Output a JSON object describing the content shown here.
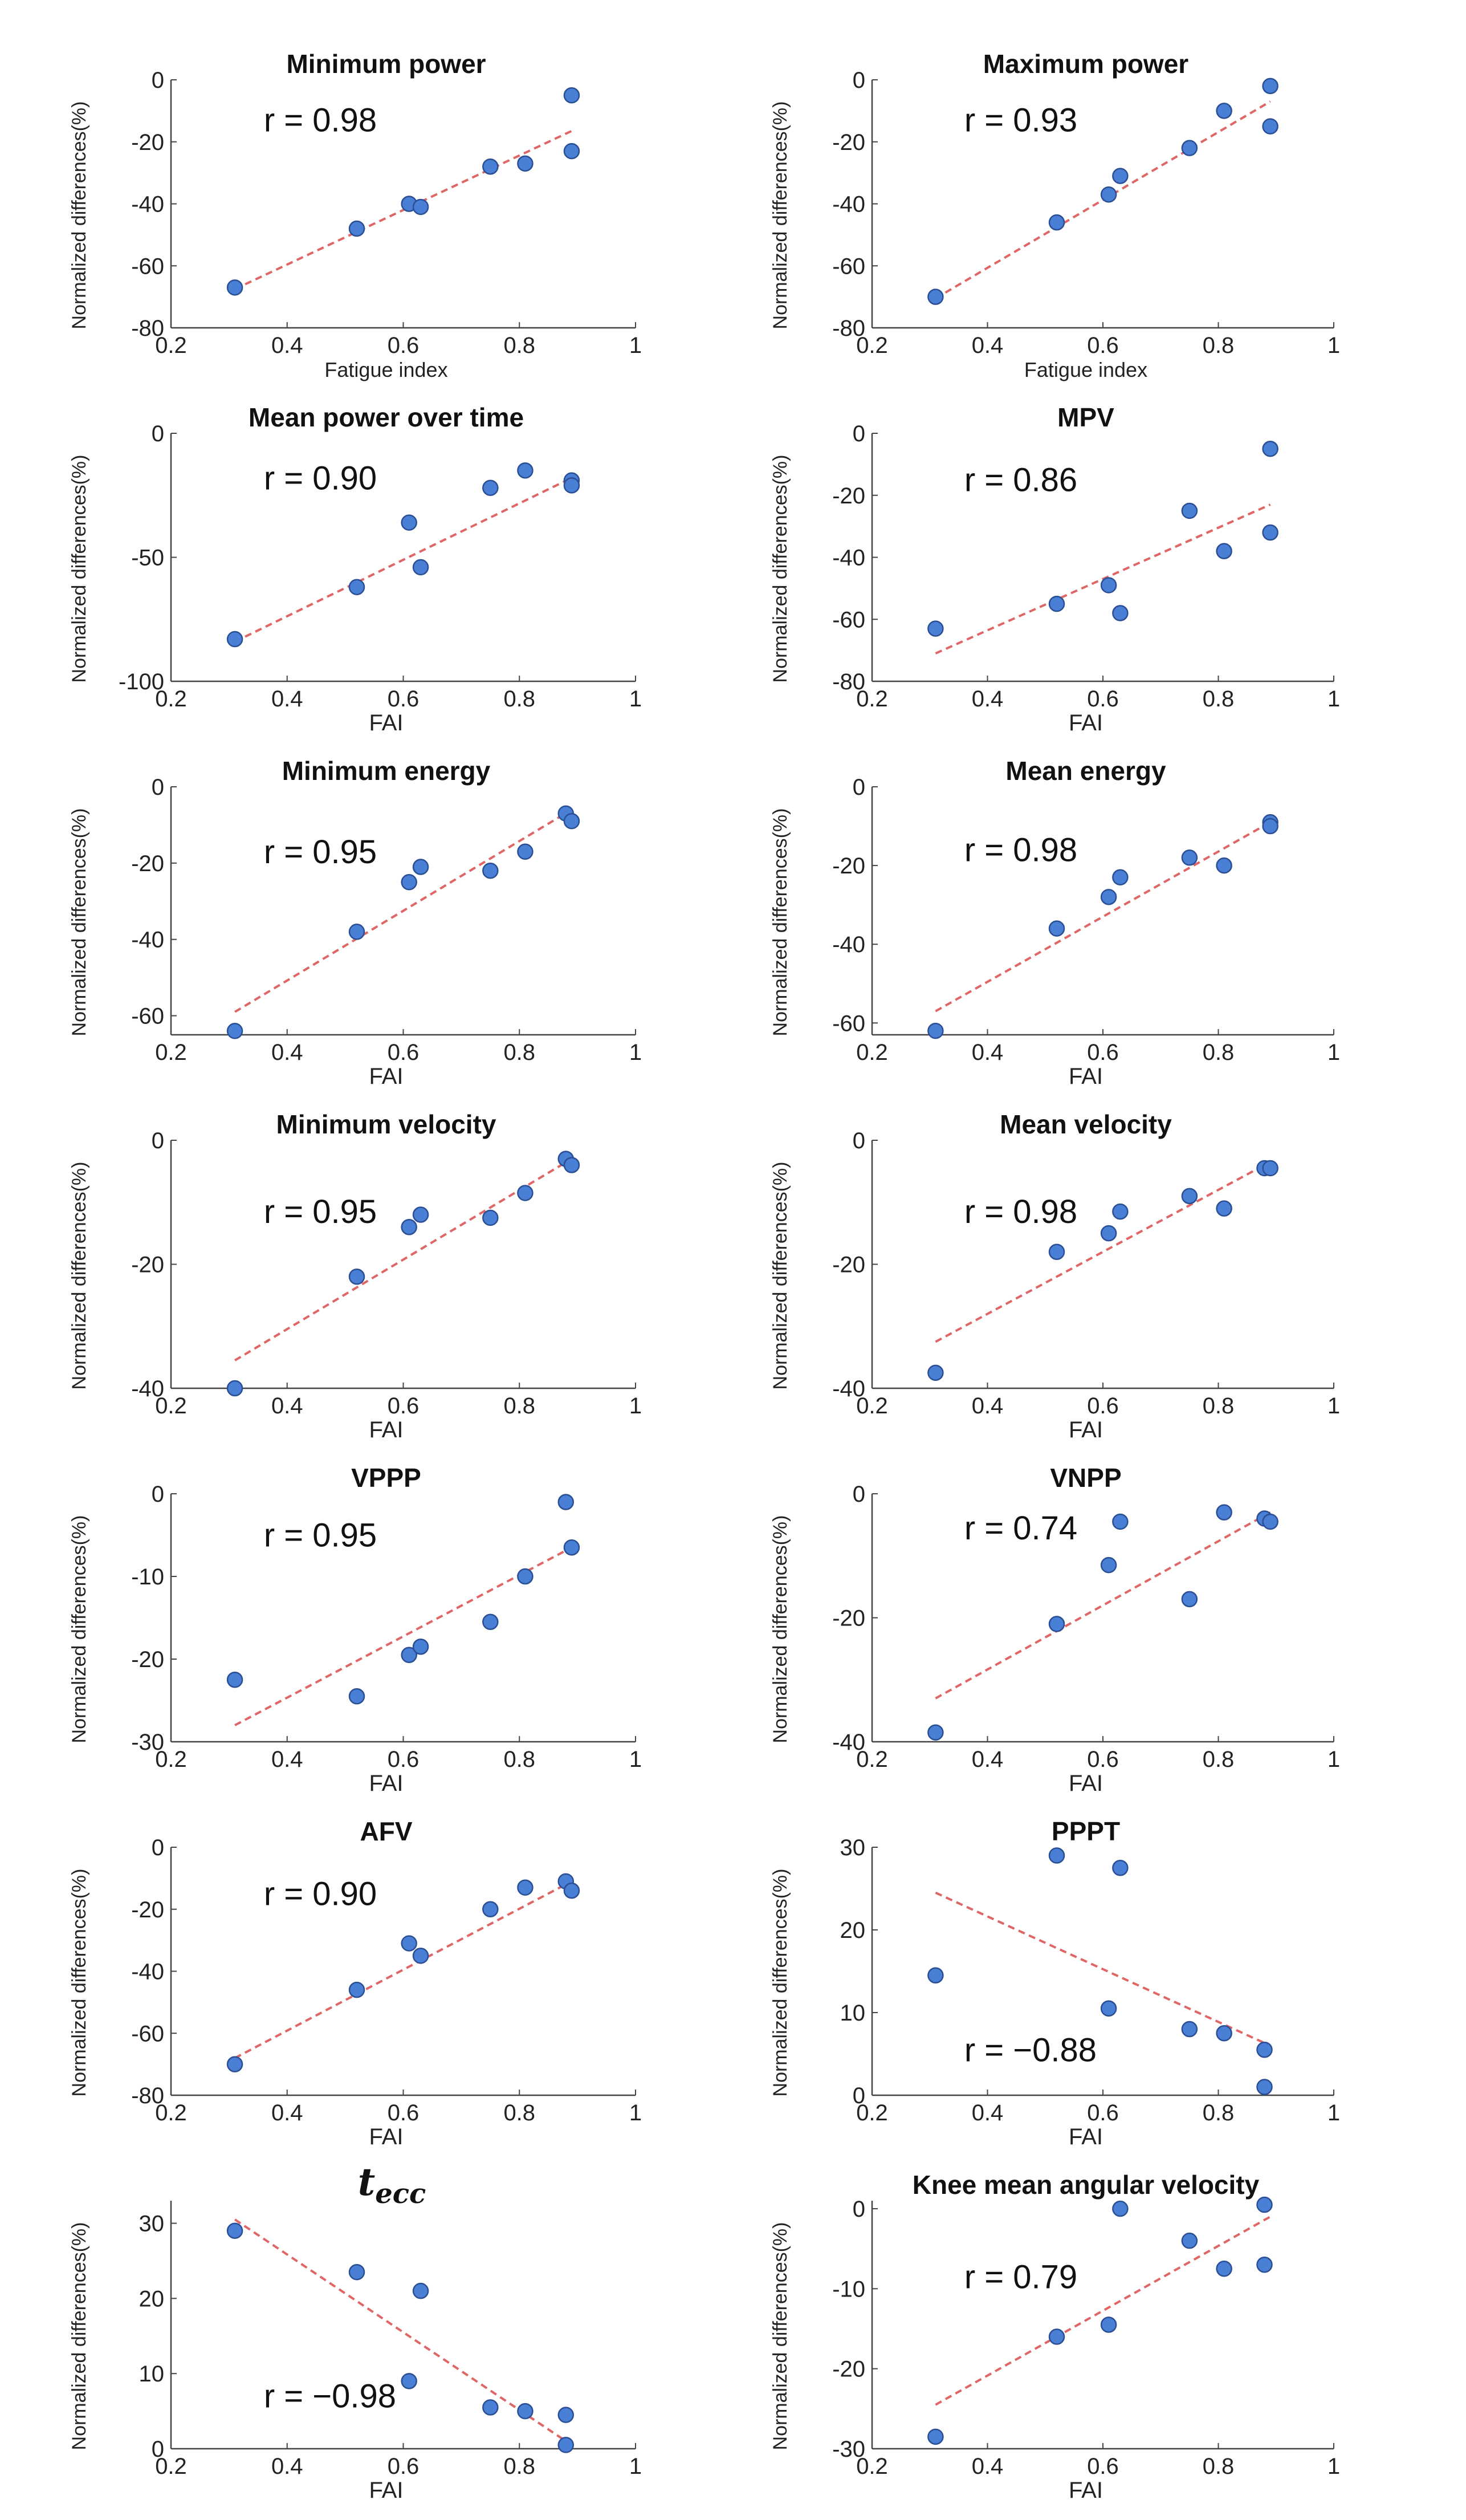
{
  "ylabel_text": "Normalized differences(%)",
  "fit_color": "#e06666",
  "point_color": "#4a7fd6",
  "point_stroke": "#2a4f94",
  "chart_data": [
    {
      "type": "scatter",
      "title": "Minimum power",
      "title_style": "bold",
      "xlabel": "Fatigue index",
      "ylabel": "Normalized differences(%)",
      "xlim": [
        0.2,
        1
      ],
      "ylim": [
        -80,
        0
      ],
      "xticks": [
        "0.2",
        "0.4",
        "0.6",
        "0.8",
        "1"
      ],
      "yticks": [
        "-80",
        "-60",
        "-40",
        "-20",
        "0"
      ],
      "x": [
        0.31,
        0.52,
        0.61,
        0.63,
        0.75,
        0.81,
        0.89,
        0.89
      ],
      "y": [
        -67,
        -48,
        -40,
        -41,
        -28,
        -27,
        -23,
        -5
      ],
      "fit": [
        [
          0.31,
          -67.5
        ],
        [
          0.89,
          -16.5
        ]
      ],
      "annotation": "r = 0.98",
      "annotation_pos": [
        0.35,
        -13
      ]
    },
    {
      "type": "scatter",
      "title": "Maximum power",
      "title_style": "bold",
      "xlabel": "Fatigue index",
      "ylabel": "Normalized differences(%)",
      "xlim": [
        0.2,
        1
      ],
      "ylim": [
        -80,
        0
      ],
      "xticks": [
        "0.2",
        "0.4",
        "0.6",
        "0.8",
        "1"
      ],
      "yticks": [
        "-80",
        "-60",
        "-40",
        "-20",
        "0"
      ],
      "x": [
        0.31,
        0.52,
        0.61,
        0.63,
        0.75,
        0.81,
        0.89,
        0.89
      ],
      "y": [
        -70,
        -46,
        -37,
        -31,
        -22,
        -10,
        -15,
        -2
      ],
      "fit": [
        [
          0.31,
          -70.5
        ],
        [
          0.89,
          -7
        ]
      ],
      "annotation": "r = 0.93",
      "annotation_pos": [
        0.35,
        -13
      ]
    },
    {
      "type": "scatter",
      "title": "Mean power over time",
      "title_style": "bold",
      "xlabel": "FAI",
      "ylabel": "Normalized differences(%)",
      "xlim": [
        0.2,
        1
      ],
      "ylim": [
        -100,
        0
      ],
      "xticks": [
        "0.2",
        "0.4",
        "0.6",
        "0.8",
        "1"
      ],
      "yticks": [
        "-100",
        "-50",
        "0"
      ],
      "x": [
        0.31,
        0.52,
        0.61,
        0.63,
        0.75,
        0.81,
        0.89,
        0.89
      ],
      "y": [
        -83,
        -62,
        -36,
        -54,
        -22,
        -15,
        -19,
        -21
      ],
      "fit": [
        [
          0.31,
          -84
        ],
        [
          0.89,
          -18
        ]
      ],
      "annotation": "r = 0.90",
      "annotation_pos": [
        0.35,
        -18
      ]
    },
    {
      "type": "scatter",
      "title": "MPV",
      "title_style": "bold",
      "xlabel": "FAI",
      "ylabel": "Normalized differences(%)",
      "xlim": [
        0.2,
        1
      ],
      "ylim": [
        -80,
        0
      ],
      "xticks": [
        "0.2",
        "0.4",
        "0.6",
        "0.8",
        "1"
      ],
      "yticks": [
        "-80",
        "-60",
        "-40",
        "-20",
        "0"
      ],
      "x": [
        0.31,
        0.52,
        0.61,
        0.63,
        0.75,
        0.81,
        0.89,
        0.89
      ],
      "y": [
        -63,
        -55,
        -49,
        -58,
        -25,
        -38,
        -32,
        -5
      ],
      "fit": [
        [
          0.31,
          -71
        ],
        [
          0.89,
          -23
        ]
      ],
      "annotation": "r = 0.86",
      "annotation_pos": [
        0.35,
        -15
      ]
    },
    {
      "type": "scatter",
      "title": "Minimum energy",
      "title_style": "bold",
      "xlabel": "FAI",
      "ylabel": "Normalized differences(%)",
      "xlim": [
        0.2,
        1
      ],
      "ylim": [
        -65,
        0
      ],
      "xticks": [
        "0.2",
        "0.4",
        "0.6",
        "0.8",
        "1"
      ],
      "yticks": [
        "-60",
        "-40",
        "-20",
        "0"
      ],
      "x": [
        0.31,
        0.52,
        0.61,
        0.63,
        0.75,
        0.81,
        0.88,
        0.89
      ],
      "y": [
        -64,
        -38,
        -25,
        -21,
        -22,
        -17,
        -7,
        -9
      ],
      "fit": [
        [
          0.31,
          -59
        ],
        [
          0.89,
          -6
        ]
      ],
      "annotation": "r = 0.95",
      "annotation_pos": [
        0.35,
        -17
      ]
    },
    {
      "type": "scatter",
      "title": "Mean energy",
      "title_style": "bold",
      "xlabel": "FAI",
      "ylabel": "Normalized differences(%)",
      "xlim": [
        0.2,
        1
      ],
      "ylim": [
        -63,
        0
      ],
      "xticks": [
        "0.2",
        "0.4",
        "0.6",
        "0.8",
        "1"
      ],
      "yticks": [
        "-60",
        "-40",
        "-20",
        "0"
      ],
      "x": [
        0.31,
        0.52,
        0.61,
        0.63,
        0.75,
        0.81,
        0.89,
        0.89
      ],
      "y": [
        -62,
        -36,
        -28,
        -23,
        -18,
        -20,
        -9,
        -10
      ],
      "fit": [
        [
          0.31,
          -57
        ],
        [
          0.89,
          -9
        ]
      ],
      "annotation": "r = 0.98",
      "annotation_pos": [
        0.35,
        -16
      ]
    },
    {
      "type": "scatter",
      "title": "Minimum velocity",
      "title_style": "bold",
      "xlabel": "FAI",
      "ylabel": "Normalized differences(%)",
      "xlim": [
        0.2,
        1
      ],
      "ylim": [
        -40,
        0
      ],
      "xticks": [
        "0.2",
        "0.4",
        "0.6",
        "0.8",
        "1"
      ],
      "yticks": [
        "-40",
        "-20",
        "0"
      ],
      "x": [
        0.31,
        0.52,
        0.61,
        0.63,
        0.75,
        0.81,
        0.88,
        0.89
      ],
      "y": [
        -40,
        -22,
        -14,
        -12,
        -12.5,
        -8.5,
        -3,
        -4
      ],
      "fit": [
        [
          0.31,
          -35.5
        ],
        [
          0.89,
          -3
        ]
      ],
      "annotation": "r = 0.95",
      "annotation_pos": [
        0.35,
        -11.5
      ]
    },
    {
      "type": "scatter",
      "title": "Mean velocity",
      "title_style": "bold",
      "xlabel": "FAI",
      "ylabel": "Normalized differences(%)",
      "xlim": [
        0.2,
        1
      ],
      "ylim": [
        -40,
        0
      ],
      "xticks": [
        "0.2",
        "0.4",
        "0.6",
        "0.8",
        "1"
      ],
      "yticks": [
        "-40",
        "-20",
        "0"
      ],
      "x": [
        0.31,
        0.52,
        0.61,
        0.63,
        0.75,
        0.81,
        0.88,
        0.89
      ],
      "y": [
        -37.5,
        -18,
        -15,
        -11.5,
        -9,
        -11,
        -4.5,
        -4.5
      ],
      "fit": [
        [
          0.31,
          -32.5
        ],
        [
          0.89,
          -3.5
        ]
      ],
      "annotation": "r = 0.98",
      "annotation_pos": [
        0.35,
        -11.5
      ]
    },
    {
      "type": "scatter",
      "title": "VPPP",
      "title_style": "bold",
      "xlabel": "FAI",
      "ylabel": "Normalized differences(%)",
      "xlim": [
        0.2,
        1
      ],
      "ylim": [
        -30,
        0
      ],
      "xticks": [
        "0.2",
        "0.4",
        "0.6",
        "0.8",
        "1"
      ],
      "yticks": [
        "-30",
        "-20",
        "-10",
        "0"
      ],
      "x": [
        0.31,
        0.52,
        0.61,
        0.63,
        0.75,
        0.81,
        0.88,
        0.89
      ],
      "y": [
        -22.5,
        -24.5,
        -19.5,
        -18.5,
        -15.5,
        -10,
        -1,
        -6.5
      ],
      "fit": [
        [
          0.31,
          -28
        ],
        [
          0.89,
          -6.5
        ]
      ],
      "annotation": "r = 0.95",
      "annotation_pos": [
        0.35,
        -5
      ]
    },
    {
      "type": "scatter",
      "title": "VNPP",
      "title_style": "bold",
      "xlabel": "FAI",
      "ylabel": "Normalized differences(%)",
      "xlim": [
        0.2,
        1
      ],
      "ylim": [
        -40,
        0
      ],
      "xticks": [
        "0.2",
        "0.4",
        "0.6",
        "0.8",
        "1"
      ],
      "yticks": [
        "-40",
        "-20",
        "0"
      ],
      "x": [
        0.31,
        0.52,
        0.61,
        0.63,
        0.75,
        0.81,
        0.88,
        0.89
      ],
      "y": [
        -38.5,
        -21,
        -11.5,
        -4.5,
        -17,
        -3,
        -4,
        -4.5
      ],
      "fit": [
        [
          0.31,
          -33
        ],
        [
          0.89,
          -3
        ]
      ],
      "annotation": "r = 0.74",
      "annotation_pos": [
        0.35,
        -5.5
      ]
    },
    {
      "type": "scatter",
      "title": "AFV",
      "title_style": "bold",
      "xlabel": "FAI",
      "ylabel": "Normalized differences(%)",
      "xlim": [
        0.2,
        1
      ],
      "ylim": [
        -80,
        0
      ],
      "xticks": [
        "0.2",
        "0.4",
        "0.6",
        "0.8",
        "1"
      ],
      "yticks": [
        "-80",
        "-60",
        "-40",
        "-20",
        "0"
      ],
      "x": [
        0.31,
        0.52,
        0.61,
        0.63,
        0.75,
        0.81,
        0.88,
        0.89
      ],
      "y": [
        -70,
        -46,
        -31,
        -35,
        -20,
        -13,
        -11,
        -14
      ],
      "fit": [
        [
          0.31,
          -68
        ],
        [
          0.89,
          -11
        ]
      ],
      "annotation": "r = 0.90",
      "annotation_pos": [
        0.35,
        -15
      ]
    },
    {
      "type": "scatter",
      "title": "PPPT",
      "title_style": "bold",
      "xlabel": "FAI",
      "ylabel": "Normalized differences(%)",
      "xlim": [
        0.2,
        1
      ],
      "ylim": [
        0,
        30
      ],
      "xticks": [
        "0.2",
        "0.4",
        "0.6",
        "0.8",
        "1"
      ],
      "yticks": [
        "0",
        "10",
        "20",
        "30"
      ],
      "x": [
        0.31,
        0.52,
        0.61,
        0.63,
        0.75,
        0.81,
        0.88,
        0.88
      ],
      "y": [
        14.5,
        29,
        10.5,
        27.5,
        8,
        7.5,
        5.5,
        1
      ],
      "fit": [
        [
          0.31,
          24.5
        ],
        [
          0.89,
          6
        ]
      ],
      "annotation": "r = −0.88",
      "annotation_pos": [
        0.35,
        5.5
      ]
    },
    {
      "type": "scatter",
      "title": "t",
      "title_subscript": "ecc",
      "title_style": "italic-math",
      "xlabel": "FAI",
      "ylabel": "Normalized differences(%)",
      "xlim": [
        0.2,
        1
      ],
      "ylim": [
        0,
        33
      ],
      "xticks": [
        "0.2",
        "0.4",
        "0.6",
        "0.8",
        "1"
      ],
      "yticks": [
        "0",
        "10",
        "20",
        "30"
      ],
      "x": [
        0.31,
        0.52,
        0.61,
        0.63,
        0.75,
        0.81,
        0.88,
        0.88
      ],
      "y": [
        29,
        23.5,
        9,
        21,
        5.5,
        5,
        4.5,
        0.5
      ],
      "fit": [
        [
          0.31,
          30.5
        ],
        [
          0.89,
          0.5
        ]
      ],
      "annotation": "r = −0.98",
      "annotation_pos": [
        0.35,
        7
      ]
    },
    {
      "type": "scatter",
      "title": "Knee mean angular velocity",
      "title_style": "bold",
      "xlabel": "FAI",
      "ylabel": "Normalized differences(%)",
      "xlim": [
        0.2,
        1
      ],
      "ylim": [
        -30,
        1
      ],
      "xticks": [
        "0.2",
        "0.4",
        "0.6",
        "0.8",
        "1"
      ],
      "yticks": [
        "-30",
        "-20",
        "-10",
        "0"
      ],
      "x": [
        0.31,
        0.52,
        0.61,
        0.63,
        0.75,
        0.81,
        0.88,
        0.88
      ],
      "y": [
        -28.5,
        -16,
        -14.5,
        0,
        -4,
        -7.5,
        -7,
        0.5
      ],
      "fit": [
        [
          0.31,
          -24.5
        ],
        [
          0.89,
          -1
        ]
      ],
      "annotation": "r = 0.79",
      "annotation_pos": [
        0.35,
        -8.5
      ]
    }
  ]
}
